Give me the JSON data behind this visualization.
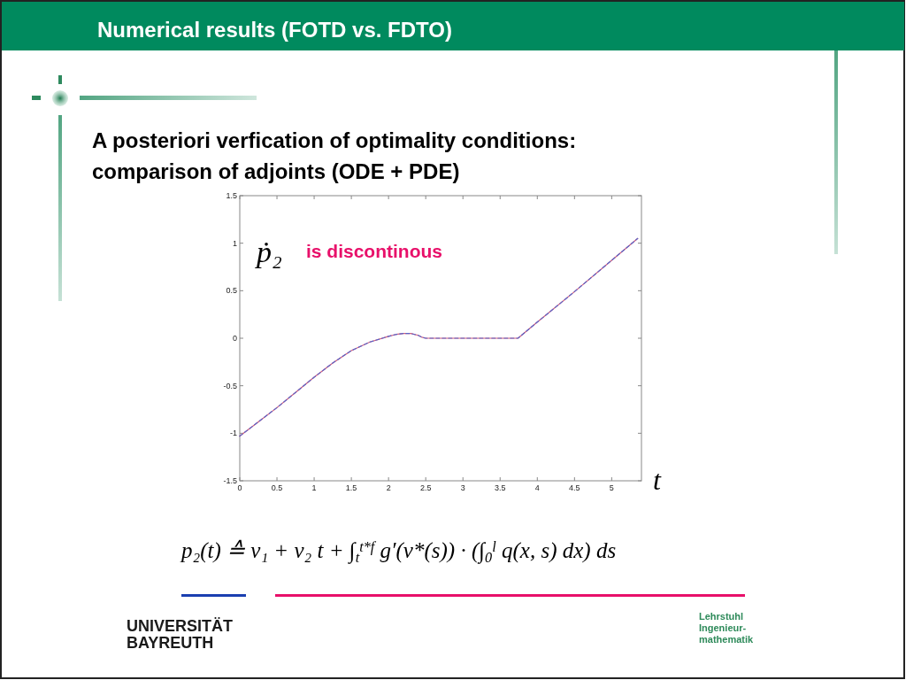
{
  "chart_data": {
    "type": "line",
    "title": "Numerical results (FOTD vs. FDTO)",
    "subtitle": "A posteriori verfication of optimality conditions:\ncomparison of adjoints (ODE + PDE)",
    "xlabel": "t",
    "annotations": [
      "ṗ₂",
      "is discontinous",
      "p₂(t) ≙ ν₁ + ν₂ t + ∫$_{t}$$^{t*f}$ g′(v*(s)) · (∫$_{0}$$^{l}$ q(x, s) dx) ds",
      "UNIVERSITÄT\nBAYREUTH",
      "Lehrstuhl\nIngenieur-\nmathematik"
    ],
    "x": [
      0,
      0.25,
      0.5,
      0.75,
      1,
      1.25,
      1.5,
      1.75,
      2,
      2.1,
      2.2,
      2.3,
      2.4,
      2.45,
      2.5,
      2.6,
      3,
      3.5,
      3.74,
      4,
      4.5,
      5,
      5.35
    ],
    "series": [
      {
        "color": "#d9607a",
        "line_style": "solid",
        "values": [
          -1.03,
          -0.88,
          -0.73,
          -0.57,
          -0.41,
          -0.26,
          -0.13,
          -0.04,
          0.02,
          0.04,
          0.05,
          0.05,
          0.03,
          0.01,
          0,
          0,
          0,
          0,
          0,
          0.17,
          0.49,
          0.82,
          1.05
        ]
      },
      {
        "color": "#5a64c8",
        "line_style": "dashed",
        "values": [
          -1.03,
          -0.88,
          -0.73,
          -0.57,
          -0.41,
          -0.26,
          -0.13,
          -0.04,
          0.02,
          0.04,
          0.05,
          0.05,
          0.03,
          0.01,
          0,
          0,
          0,
          0,
          0,
          0.17,
          0.49,
          0.82,
          1.05
        ]
      }
    ],
    "xlim": [
      0,
      5.4
    ],
    "ylim": [
      -1.5,
      1.5
    ],
    "xticks": [
      0,
      0.5,
      1,
      1.5,
      2,
      2.5,
      3,
      3.5,
      4,
      4.5,
      5
    ],
    "yticks": [
      -1.5,
      -1,
      -0.5,
      0,
      0.5,
      1,
      1.5
    ]
  }
}
